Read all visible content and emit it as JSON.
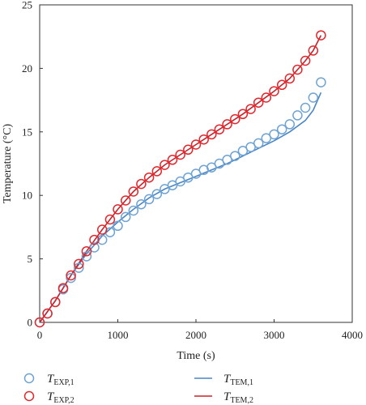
{
  "chart_data": {
    "type": "scatter",
    "title": "",
    "xlabel": "Time (s)",
    "ylabel": "Temperature (°C)",
    "xlim": [
      0,
      4000
    ],
    "ylim": [
      0,
      25
    ],
    "xticks": [
      "0",
      "1000",
      "2000",
      "3000",
      "4000"
    ],
    "yticks": [
      "0",
      "5",
      "10",
      "15",
      "20",
      "25"
    ],
    "grid": false,
    "legend_position": "bottom",
    "series": [
      {
        "name": "T_EXP,1",
        "name_main": "T",
        "name_sub": "EXP,1",
        "kind": "markers",
        "color": "#6fa3d3",
        "x": [
          0,
          100,
          200,
          300,
          400,
          500,
          600,
          700,
          800,
          900,
          1000,
          1100,
          1200,
          1300,
          1400,
          1500,
          1600,
          1700,
          1800,
          1900,
          2000,
          2100,
          2200,
          2300,
          2400,
          2500,
          2600,
          2700,
          2800,
          2900,
          3000,
          3100,
          3200,
          3300,
          3400,
          3500,
          3600
        ],
        "y": [
          0,
          0.7,
          1.6,
          2.6,
          3.5,
          4.3,
          5.2,
          5.9,
          6.5,
          7.1,
          7.6,
          8.3,
          8.8,
          9.3,
          9.7,
          10.1,
          10.5,
          10.8,
          11.1,
          11.4,
          11.7,
          12.0,
          12.2,
          12.5,
          12.8,
          13.1,
          13.5,
          13.8,
          14.1,
          14.5,
          14.8,
          15.2,
          15.6,
          16.3,
          16.9,
          17.7,
          18.9
        ]
      },
      {
        "name": "T_EXP,2",
        "name_main": "T",
        "name_sub": "EXP,2",
        "kind": "markers",
        "color": "#e0282e",
        "x": [
          0,
          100,
          200,
          300,
          400,
          500,
          600,
          700,
          800,
          900,
          1000,
          1100,
          1200,
          1300,
          1400,
          1500,
          1600,
          1700,
          1800,
          1900,
          2000,
          2100,
          2200,
          2300,
          2400,
          2500,
          2600,
          2700,
          2800,
          2900,
          3000,
          3100,
          3200,
          3300,
          3400,
          3500,
          3600
        ],
        "y": [
          0,
          0.7,
          1.6,
          2.7,
          3.7,
          4.6,
          5.6,
          6.5,
          7.3,
          8.1,
          8.9,
          9.6,
          10.3,
          10.9,
          11.4,
          11.9,
          12.4,
          12.8,
          13.2,
          13.6,
          14.0,
          14.4,
          14.8,
          15.2,
          15.6,
          16.0,
          16.4,
          16.8,
          17.3,
          17.7,
          18.2,
          18.7,
          19.2,
          19.9,
          20.6,
          21.4,
          22.6
        ]
      },
      {
        "name": "T_TEM,1",
        "name_main": "T",
        "name_sub": "TEM,1",
        "kind": "line",
        "color": "#4a86c5",
        "x": [
          0,
          200,
          400,
          600,
          800,
          1000,
          1200,
          1400,
          1600,
          1800,
          2000,
          2200,
          2400,
          2600,
          2800,
          3000,
          3200,
          3400,
          3500,
          3600
        ],
        "y": [
          0,
          1.7,
          3.7,
          5.4,
          6.8,
          7.9,
          8.9,
          9.8,
          10.5,
          11.0,
          11.5,
          12.0,
          12.5,
          13.1,
          13.7,
          14.3,
          15.0,
          15.9,
          16.7,
          18.1
        ]
      },
      {
        "name": "T_TEM,2",
        "name_main": "T",
        "name_sub": "TEM,2",
        "kind": "line",
        "color": "#c8222a",
        "x": [
          0,
          200,
          400,
          600,
          800,
          1000,
          1200,
          1400,
          1600,
          1800,
          2000,
          2200,
          2400,
          2600,
          2800,
          3000,
          3200,
          3400,
          3500,
          3600
        ],
        "y": [
          0,
          1.7,
          3.7,
          5.6,
          7.3,
          8.9,
          10.3,
          11.4,
          12.4,
          13.2,
          14.0,
          14.8,
          15.6,
          16.4,
          17.3,
          18.2,
          19.2,
          20.6,
          21.4,
          22.6
        ]
      }
    ]
  }
}
